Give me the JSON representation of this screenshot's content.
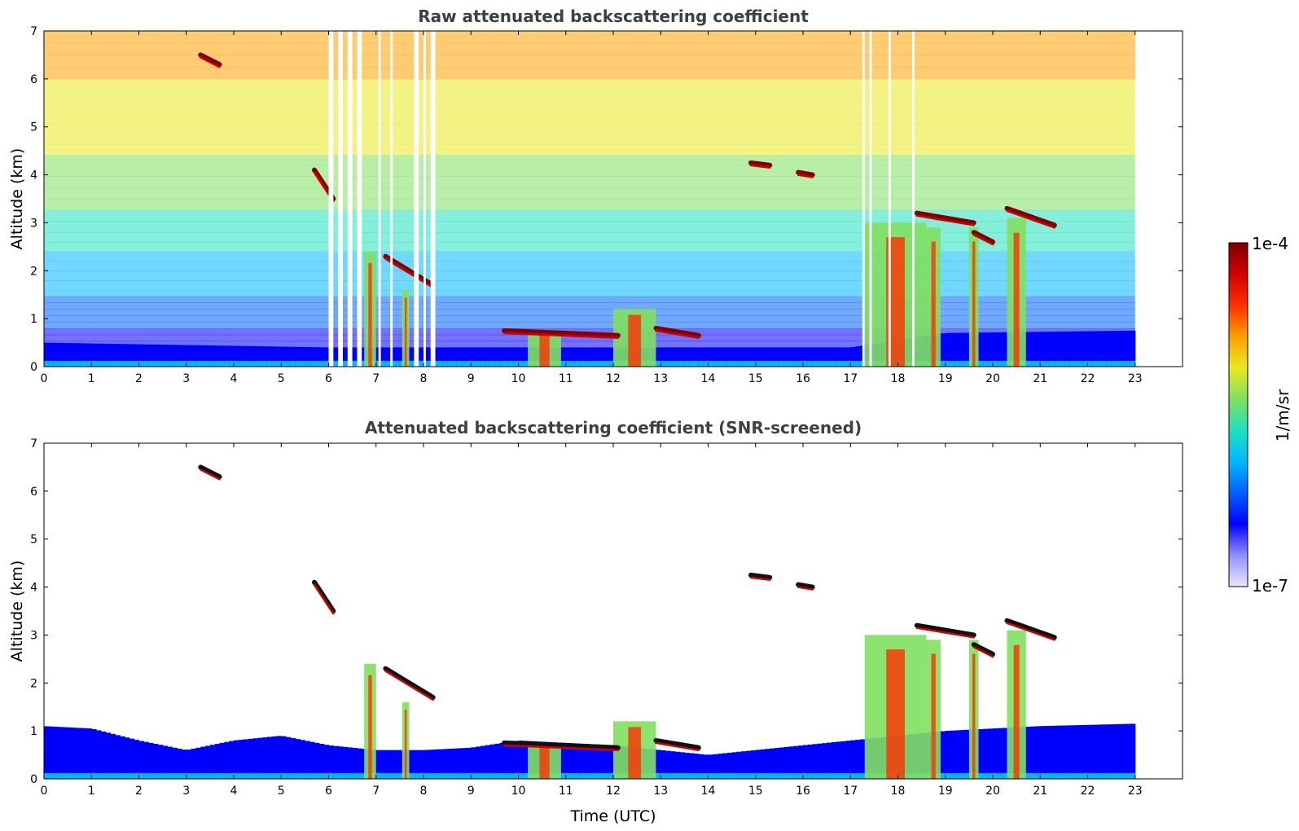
{
  "colors": {
    "colormap": [
      "#e8e8f8",
      "#9090ff",
      "#0000ff",
      "#0060ff",
      "#00b8ff",
      "#20e0c0",
      "#80e060",
      "#e8e820",
      "#ffa000",
      "#ff3000",
      "#d00000",
      "#800000"
    ],
    "title_text": "#404040",
    "screened_nan": "#ffffff"
  },
  "colorbar": {
    "label": "1/m/sr",
    "max_label": "1e-4",
    "min_label": "1e-7",
    "scale": "log",
    "range": [
      1e-07,
      0.0001
    ]
  },
  "chart_data": [
    {
      "type": "heatmap",
      "title": "Raw attenuated backscattering coefficient",
      "xlabel": "",
      "ylabel": "Altitude (km)",
      "xlim": [
        0,
        24
      ],
      "ylim": [
        0,
        7
      ],
      "x_ticks": [
        "0",
        "1",
        "2",
        "3",
        "4",
        "5",
        "6",
        "7",
        "8",
        "9",
        "10",
        "11",
        "12",
        "13",
        "14",
        "15",
        "16",
        "17",
        "18",
        "19",
        "20",
        "21",
        "22",
        "23"
      ],
      "y_ticks": [
        "0",
        "1",
        "2",
        "3",
        "4",
        "5",
        "6",
        "7"
      ],
      "data_end_time": 23,
      "grid": false,
      "gaps": [
        [
          6.0,
          6.1
        ],
        [
          6.2,
          6.3
        ],
        [
          6.4,
          6.5
        ],
        [
          6.6,
          6.7
        ],
        [
          7.05,
          7.1
        ],
        [
          7.3,
          7.35
        ],
        [
          7.8,
          7.9
        ],
        [
          8.0,
          8.05
        ],
        [
          8.15,
          8.25
        ],
        [
          17.25,
          17.3
        ],
        [
          17.4,
          17.45
        ],
        [
          17.8,
          17.85
        ],
        [
          18.3,
          18.35
        ]
      ],
      "features": [
        {
          "kind": "boundary_layer",
          "top_km": [
            [
              0,
              0.5
            ],
            [
              3,
              0.45
            ],
            [
              6,
              0.4
            ],
            [
              9,
              0.4
            ],
            [
              12,
              0.4
            ],
            [
              17,
              0.4
            ],
            [
              19,
              0.7
            ],
            [
              23,
              0.75
            ]
          ]
        },
        {
          "kind": "cloud_layer",
          "t": [
            9.7,
            12.1
          ],
          "alt_km": [
            0.75,
            0.65
          ]
        },
        {
          "kind": "cloud_layer",
          "t": [
            12.9,
            13.8
          ],
          "alt_km": [
            0.8,
            0.65
          ]
        },
        {
          "kind": "cloud_layer",
          "t": [
            18.4,
            19.6
          ],
          "alt_km": [
            3.2,
            3.0
          ]
        },
        {
          "kind": "cloud_layer",
          "t": [
            20.3,
            21.3
          ],
          "alt_km": [
            3.3,
            2.95
          ]
        },
        {
          "kind": "cloud_layer",
          "t": [
            19.6,
            20.0
          ],
          "alt_km": [
            2.8,
            2.6
          ]
        },
        {
          "kind": "cloud_layer",
          "t": [
            7.2,
            8.2
          ],
          "alt_km": [
            2.3,
            1.7
          ]
        },
        {
          "kind": "cloud_layer",
          "t": [
            5.7,
            6.1
          ],
          "alt_km": [
            4.1,
            3.5
          ]
        },
        {
          "kind": "cloud_layer",
          "t": [
            3.3,
            3.7
          ],
          "alt_km": [
            6.5,
            6.3
          ]
        },
        {
          "kind": "cloud_layer",
          "t": [
            14.9,
            15.3
          ],
          "alt_km": [
            4.25,
            4.2
          ]
        },
        {
          "kind": "cloud_layer",
          "t": [
            15.9,
            16.2
          ],
          "alt_km": [
            4.05,
            4.0
          ]
        },
        {
          "kind": "precipitation",
          "t": [
            6.75,
            7.0
          ],
          "from_km": 2.4
        },
        {
          "kind": "precipitation",
          "t": [
            7.55,
            7.7
          ],
          "from_km": 1.6
        },
        {
          "kind": "precipitation",
          "t": [
            10.2,
            10.9
          ],
          "from_km": 0.75
        },
        {
          "kind": "precipitation",
          "t": [
            12.0,
            12.9
          ],
          "from_km": 1.2
        },
        {
          "kind": "precipitation",
          "t": [
            17.3,
            18.6
          ],
          "from_km": 3.0
        },
        {
          "kind": "precipitation",
          "t": [
            18.6,
            18.9
          ],
          "from_km": 2.9
        },
        {
          "kind": "precipitation",
          "t": [
            19.5,
            19.7
          ],
          "from_km": 2.9
        },
        {
          "kind": "precipitation",
          "t": [
            20.3,
            20.7
          ],
          "from_km": 3.1
        }
      ]
    },
    {
      "type": "heatmap",
      "title": "Attenuated backscattering coefficient (SNR-screened)",
      "xlabel": "Time (UTC)",
      "ylabel": "Altitude (km)",
      "xlim": [
        0,
        24
      ],
      "ylim": [
        0,
        7
      ],
      "x_ticks": [
        "0",
        "1",
        "2",
        "3",
        "4",
        "5",
        "6",
        "7",
        "8",
        "9",
        "10",
        "11",
        "12",
        "13",
        "14",
        "15",
        "16",
        "17",
        "18",
        "19",
        "20",
        "21",
        "22",
        "23"
      ],
      "y_ticks": [
        "0",
        "1",
        "2",
        "3",
        "4",
        "5",
        "6",
        "7"
      ],
      "data_end_time": 23,
      "grid": false,
      "features": [
        {
          "kind": "boundary_layer",
          "top_km": [
            [
              0,
              1.1
            ],
            [
              1,
              1.05
            ],
            [
              2,
              0.8
            ],
            [
              3,
              0.6
            ],
            [
              4,
              0.8
            ],
            [
              5,
              0.9
            ],
            [
              6,
              0.7
            ],
            [
              7,
              0.6
            ],
            [
              8,
              0.6
            ],
            [
              9,
              0.65
            ],
            [
              10,
              0.8
            ],
            [
              12,
              0.7
            ],
            [
              14,
              0.5
            ],
            [
              17,
              0.8
            ],
            [
              19,
              1.0
            ],
            [
              21,
              1.1
            ],
            [
              23,
              1.15
            ]
          ]
        },
        {
          "kind": "cloud_layer",
          "t": [
            9.7,
            12.1
          ],
          "alt_km": [
            0.75,
            0.65
          ]
        },
        {
          "kind": "cloud_layer",
          "t": [
            12.9,
            13.8
          ],
          "alt_km": [
            0.8,
            0.65
          ]
        },
        {
          "kind": "cloud_layer",
          "t": [
            18.4,
            19.6
          ],
          "alt_km": [
            3.2,
            3.0
          ]
        },
        {
          "kind": "cloud_layer",
          "t": [
            20.3,
            21.3
          ],
          "alt_km": [
            3.3,
            2.95
          ]
        },
        {
          "kind": "cloud_layer",
          "t": [
            19.6,
            20.0
          ],
          "alt_km": [
            2.8,
            2.6
          ]
        },
        {
          "kind": "cloud_layer",
          "t": [
            7.2,
            8.2
          ],
          "alt_km": [
            2.3,
            1.7
          ]
        },
        {
          "kind": "cloud_layer",
          "t": [
            5.7,
            6.1
          ],
          "alt_km": [
            4.1,
            3.5
          ]
        },
        {
          "kind": "cloud_layer",
          "t": [
            3.3,
            3.7
          ],
          "alt_km": [
            6.5,
            6.3
          ]
        },
        {
          "kind": "cloud_layer",
          "t": [
            14.9,
            15.3
          ],
          "alt_km": [
            4.25,
            4.2
          ]
        },
        {
          "kind": "cloud_layer",
          "t": [
            15.9,
            16.2
          ],
          "alt_km": [
            4.05,
            4.0
          ]
        },
        {
          "kind": "precipitation",
          "t": [
            6.75,
            7.0
          ],
          "from_km": 2.4
        },
        {
          "kind": "precipitation",
          "t": [
            7.55,
            7.7
          ],
          "from_km": 1.6
        },
        {
          "kind": "precipitation",
          "t": [
            10.2,
            10.9
          ],
          "from_km": 0.75
        },
        {
          "kind": "precipitation",
          "t": [
            12.0,
            12.9
          ],
          "from_km": 1.2
        },
        {
          "kind": "precipitation",
          "t": [
            17.3,
            18.6
          ],
          "from_km": 3.0
        },
        {
          "kind": "precipitation",
          "t": [
            18.6,
            18.9
          ],
          "from_km": 2.9
        },
        {
          "kind": "precipitation",
          "t": [
            19.5,
            19.7
          ],
          "from_km": 2.9
        },
        {
          "kind": "precipitation",
          "t": [
            20.3,
            20.7
          ],
          "from_km": 3.1
        }
      ]
    }
  ]
}
